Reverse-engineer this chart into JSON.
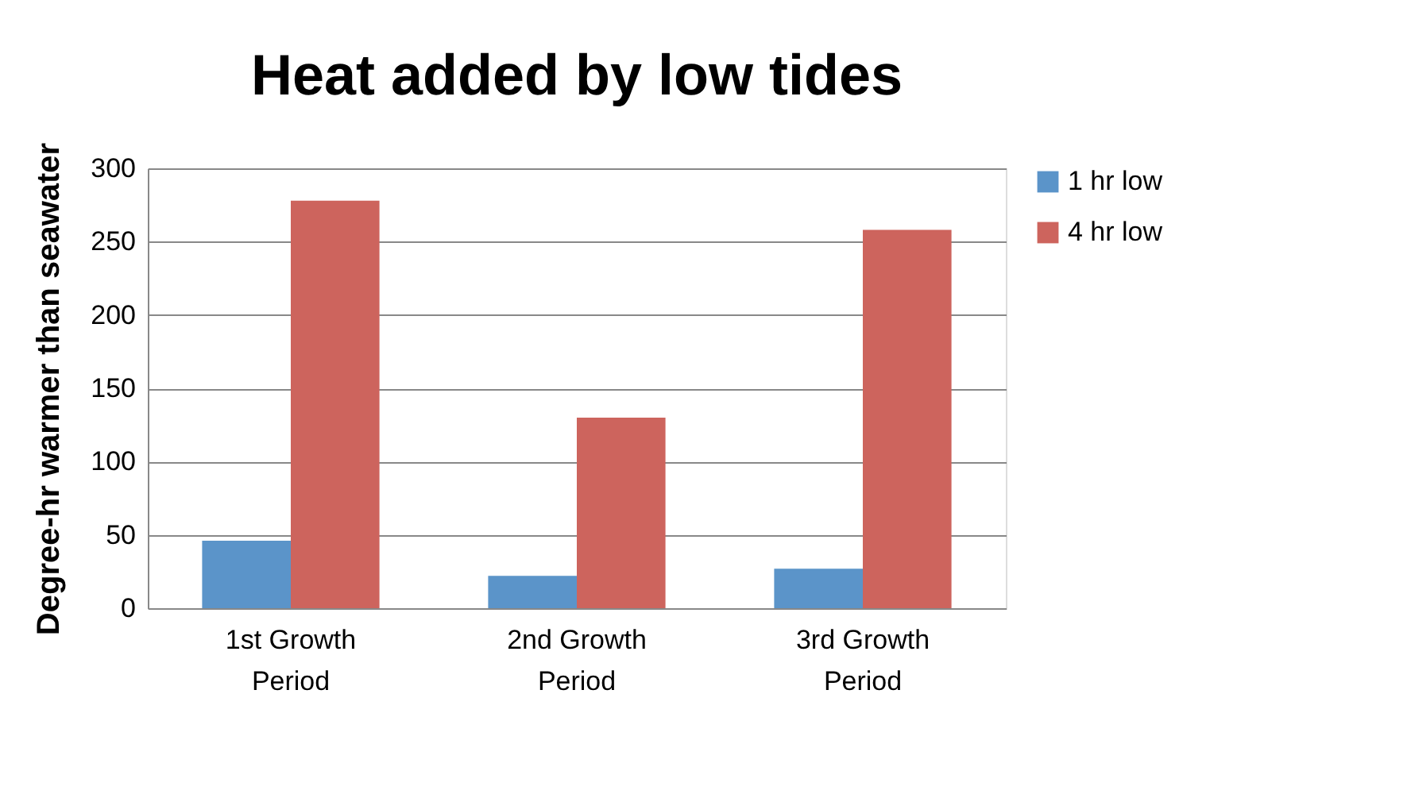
{
  "chart_data": {
    "type": "bar",
    "title": "Heat added by low tides",
    "ylabel": "Degree-hr warmer than seawater",
    "categories": [
      "1st Growth Period",
      "2nd Growth Period",
      "3rd Growth Period"
    ],
    "series": [
      {
        "name": "1 hr low",
        "color": "#5b94c9",
        "values": [
          46,
          22,
          27
        ]
      },
      {
        "name": "4 hr low",
        "color": "#cd645d",
        "values": [
          278,
          130,
          258
        ]
      }
    ],
    "ylim": [
      0,
      300
    ],
    "yticks": [
      0,
      50,
      100,
      150,
      200,
      250,
      300
    ],
    "grid": "y",
    "legend": "right"
  }
}
